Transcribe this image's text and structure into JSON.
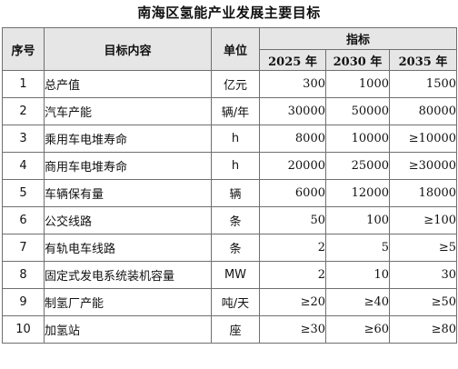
{
  "title": "南海区氢能产业发展主要目标",
  "headers": {
    "index": "序号",
    "item": "目标内容",
    "unit": "单位",
    "indicator": "指标",
    "years": [
      "2025 年",
      "2030 年",
      "2035 年"
    ]
  },
  "rows": [
    {
      "index": "1",
      "item": "总产值",
      "unit": "亿元",
      "y2025": "300",
      "y2030": "1000",
      "y2035": "1500"
    },
    {
      "index": "2",
      "item": "汽车产能",
      "unit": "辆/年",
      "y2025": "30000",
      "y2030": "50000",
      "y2035": "80000"
    },
    {
      "index": "3",
      "item": "乘用车电堆寿命",
      "unit": "h",
      "y2025": "8000",
      "y2030": "10000",
      "y2035": "≥10000"
    },
    {
      "index": "4",
      "item": "商用车电堆寿命",
      "unit": "h",
      "y2025": "20000",
      "y2030": "25000",
      "y2035": "≥30000"
    },
    {
      "index": "5",
      "item": "车辆保有量",
      "unit": "辆",
      "y2025": "6000",
      "y2030": "12000",
      "y2035": "18000"
    },
    {
      "index": "6",
      "item": "公交线路",
      "unit": "条",
      "y2025": "50",
      "y2030": "100",
      "y2035": "≥100"
    },
    {
      "index": "7",
      "item": "有轨电车线路",
      "unit": "条",
      "y2025": "2",
      "y2030": "5",
      "y2035": "≥5"
    },
    {
      "index": "8",
      "item": "固定式发电系统装机容量",
      "unit": "MW",
      "y2025": "2",
      "y2030": "10",
      "y2035": "30"
    },
    {
      "index": "9",
      "item": "制氢厂产能",
      "unit": "吨/天",
      "y2025": "≥20",
      "y2030": "≥40",
      "y2035": "≥50"
    },
    {
      "index": "10",
      "item": "加氢站",
      "unit": "座",
      "y2025": "≥30",
      "y2030": "≥60",
      "y2035": "≥80"
    }
  ]
}
